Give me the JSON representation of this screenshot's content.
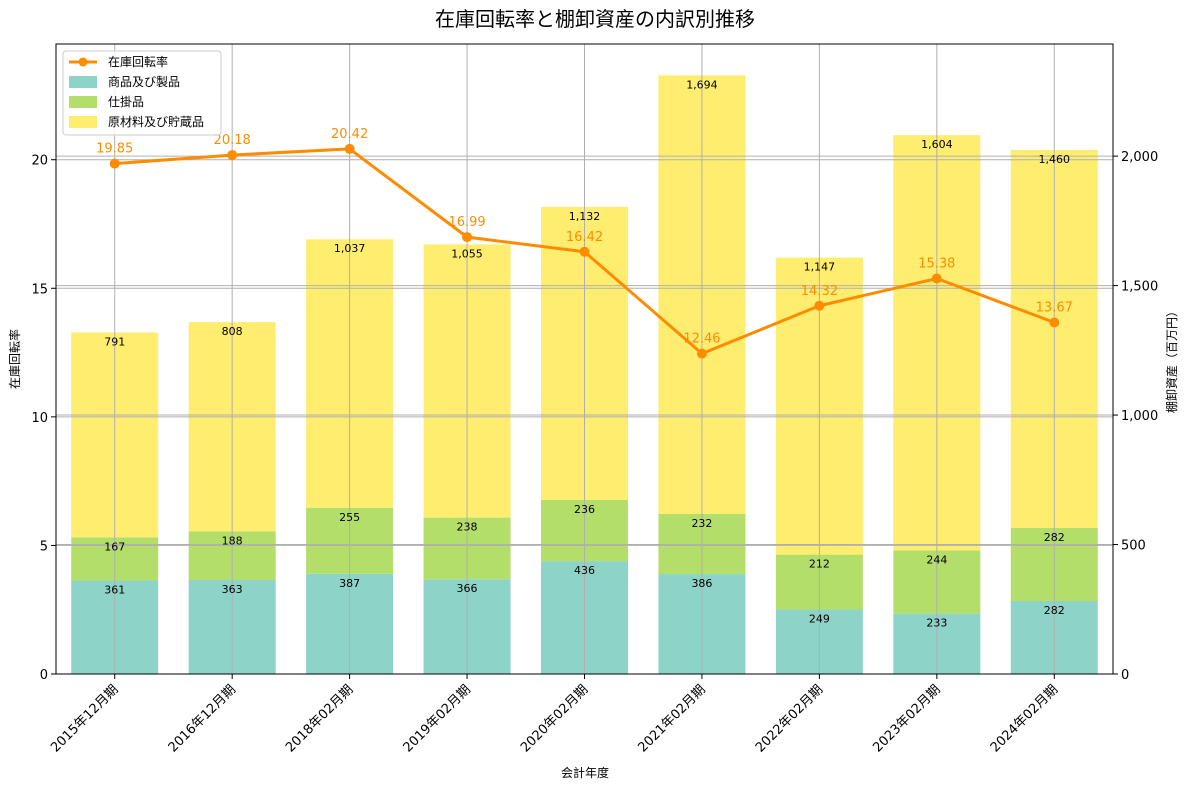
{
  "chart_data": {
    "type": "bar",
    "title": "在庫回転率と棚卸資産の内訳別推移",
    "xlabel": "会計年度",
    "ylabel_left": "在庫回転率",
    "ylabel_right": "棚卸資産（百万円）",
    "categories": [
      "2015年12月期",
      "2016年12月期",
      "2018年02月期",
      "2019年02月期",
      "2020年02月期",
      "2021年02月期",
      "2022年02月期",
      "2023年02月期",
      "2024年02月期"
    ],
    "left_axis": {
      "min": 0,
      "max": 24.5,
      "ticks": [
        0,
        5,
        10,
        15,
        20
      ],
      "tick_labels": [
        "0",
        "5",
        "10",
        "15",
        "20"
      ]
    },
    "right_axis": {
      "min": 0,
      "max": 2433,
      "ticks": [
        0,
        500,
        1000,
        1500,
        2000
      ],
      "tick_labels": [
        "0",
        "500",
        "1,000",
        "1,500",
        "2,000"
      ]
    },
    "grid": true,
    "legend_position": "top-left",
    "series": [
      {
        "name": "商品及び製品",
        "kind": "stacked-bar",
        "axis": "right",
        "color": "#8dd3c7",
        "values": [
          361,
          363,
          387,
          366,
          436,
          386,
          249,
          233,
          282
        ],
        "labels": [
          "361",
          "363",
          "387",
          "366",
          "436",
          "386",
          "249",
          "233",
          "282"
        ]
      },
      {
        "name": "仕掛品",
        "kind": "stacked-bar",
        "axis": "right",
        "color": "#b3de69",
        "values": [
          167,
          188,
          255,
          238,
          236,
          232,
          212,
          244,
          282
        ],
        "labels": [
          "167",
          "188",
          "255",
          "238",
          "236",
          "232",
          "212",
          "244",
          "282"
        ]
      },
      {
        "name": "原材料及び貯蔵品",
        "kind": "stacked-bar",
        "axis": "right",
        "color": "#ffed6f",
        "values": [
          791,
          808,
          1037,
          1055,
          1132,
          1694,
          1147,
          1604,
          1460
        ],
        "labels": [
          "791",
          "808",
          "1,037",
          "1,055",
          "1,132",
          "1,694",
          "1,147",
          "1,604",
          "1,460"
        ]
      },
      {
        "name": "在庫回転率",
        "kind": "line",
        "axis": "left",
        "color": "#ff8c00",
        "values": [
          19.85,
          20.18,
          20.42,
          16.99,
          16.42,
          12.46,
          14.32,
          15.38,
          13.67
        ],
        "labels": [
          "19.85",
          "20.18",
          "20.42",
          "16.99",
          "16.42",
          "12.46",
          "14.32",
          "15.38",
          "13.67"
        ]
      }
    ]
  }
}
